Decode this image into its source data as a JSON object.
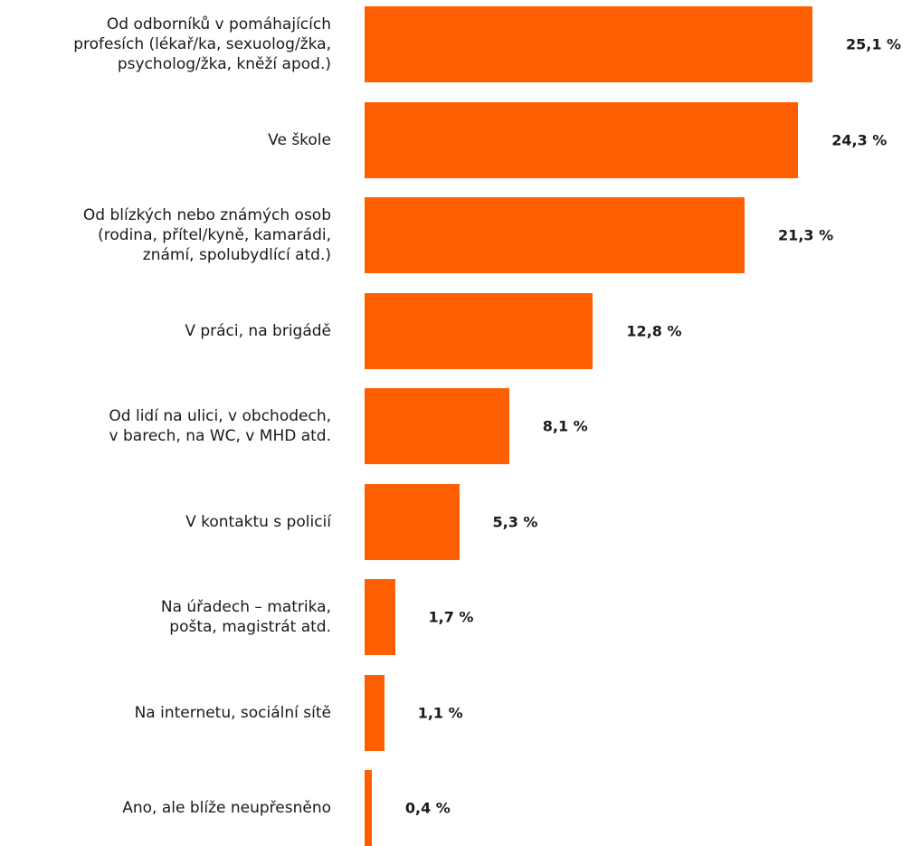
{
  "chart_data": {
    "type": "bar",
    "orientation": "horizontal",
    "categories": [
      "Od odborníků v pomáhajících\nprofesích (lékař/ka, sexuolog/žka,\npsycholog/žka, kněží apod.)",
      "Ve škole",
      "Od blízkých nebo známých osob\n(rodina, přítel/kyně, kamarádi,\nznámí, spolubydlící atd.)",
      "V práci, na brigádě",
      "Od lidí na ulici, v obchodech,\nv barech, na WC, v MHD atd.",
      "V kontaktu s policií",
      "Na úřadech – matrika,\npošta, magistrát atd.",
      "Na internetu, sociální sítě",
      "Ano, ale blíže neupřesněno"
    ],
    "values": [
      25.1,
      24.3,
      21.3,
      12.8,
      8.1,
      5.3,
      1.7,
      1.1,
      0.4
    ],
    "value_labels": [
      "25,1 %",
      "24,3 %",
      "21,3 %",
      "12,8 %",
      "8,1 %",
      "5,3 %",
      "1,7 %",
      "1,1 %",
      "0,4 %"
    ],
    "bar_color": "#ff5f00",
    "xlim": [
      0,
      25.1
    ],
    "grid": false,
    "legend": "none"
  }
}
